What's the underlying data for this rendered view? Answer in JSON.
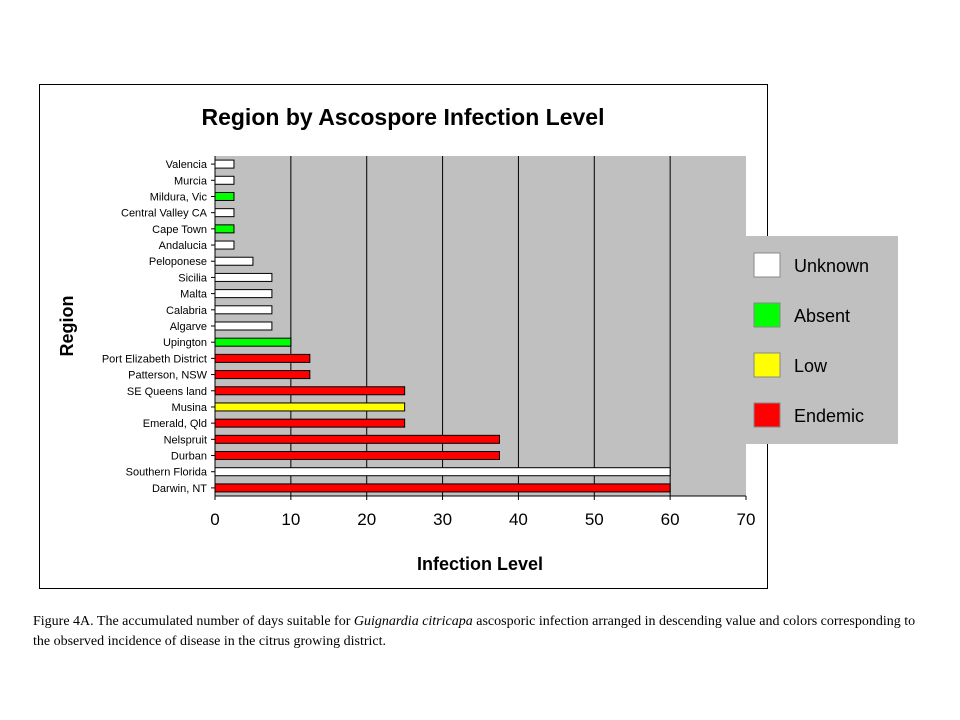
{
  "chart_data": {
    "type": "bar",
    "orientation": "horizontal",
    "title": "Region by Ascospore Infection Level",
    "xlabel": "Infection Level",
    "ylabel": "Region",
    "xlim": [
      0,
      70
    ],
    "xticks": [
      0,
      10,
      20,
      30,
      40,
      50,
      60,
      70
    ],
    "grid": "vertical",
    "legend_position": "right",
    "categories": [
      "Valencia",
      "Murcia",
      "Mildura, Vic",
      "Central Valley CA",
      "Cape Town",
      "Andalucia",
      "Peloponese",
      "Sicilia",
      "Malta",
      "Calabria",
      "Algarve",
      "Upington",
      "Port Elizabeth District",
      "Patterson, NSW",
      "SE Queens land",
      "Musina",
      "Emerald, Qld",
      "Nelspruit",
      "Durban",
      "Southern Florida",
      "Darwin, NT"
    ],
    "values": [
      2.5,
      2.5,
      2.5,
      2.5,
      2.5,
      2.5,
      5,
      7.5,
      7.5,
      7.5,
      7.5,
      10,
      12.5,
      12.5,
      25,
      25,
      25,
      37.5,
      37.5,
      60,
      60
    ],
    "incidence": [
      "Unknown",
      "Unknown",
      "Absent",
      "Unknown",
      "Absent",
      "Unknown",
      "Unknown",
      "Unknown",
      "Unknown",
      "Unknown",
      "Unknown",
      "Absent",
      "Endemic",
      "Endemic",
      "Endemic",
      "Low",
      "Endemic",
      "Endemic",
      "Endemic",
      "Unknown",
      "Endemic"
    ],
    "legend": [
      {
        "label": "Unknown",
        "color": "#ffffff"
      },
      {
        "label": "Absent",
        "color": "#00ff00"
      },
      {
        "label": "Low",
        "color": "#ffff00"
      },
      {
        "label": "Endemic",
        "color": "#ff0000"
      }
    ],
    "plot_background": "#c0c0c0"
  },
  "caption": {
    "prefix": "Figure 4A. The accumulated number of days suitable for ",
    "species": "Guignardia citricapa",
    "suffix": " ascosporic infection arranged in descending value and colors corresponding to the observed incidence of disease in the citrus growing district."
  }
}
